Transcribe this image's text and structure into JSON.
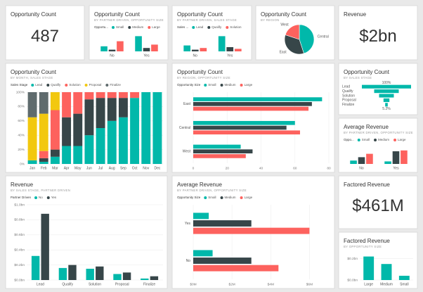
{
  "chart_data": [
    {
      "type": "card",
      "title": "Opportunity Count",
      "value": "487"
    },
    {
      "type": "bar",
      "title": "Opportunity Count",
      "subtitle": "BY PARTNER DRIVEN, OPPORTUNITY SIZE",
      "legend_title": "Opportu...",
      "categories": [
        "No",
        "Yes"
      ],
      "series": [
        {
          "name": "Small",
          "color": "#01b8aa",
          "values": [
            30,
            90
          ]
        },
        {
          "name": "Medium",
          "color": "#374649",
          "values": [
            10,
            20
          ]
        },
        {
          "name": "Large",
          "color": "#fd625e",
          "values": [
            60,
            40
          ]
        }
      ],
      "ylim": [
        0,
        100
      ]
    },
    {
      "type": "bar",
      "title": "Opportunity Count",
      "subtitle": "BY PARTNER DRIVEN, SALES STAGE",
      "legend_title": "Sales ...",
      "categories": [
        "No",
        "Yes"
      ],
      "series": [
        {
          "name": "Lead",
          "color": "#01b8aa",
          "values": [
            35,
            90
          ]
        },
        {
          "name": "Qualify",
          "color": "#374649",
          "values": [
            10,
            25
          ]
        },
        {
          "name": "Solution",
          "color": "#fd625e",
          "values": [
            20,
            15
          ]
        }
      ],
      "ylim": [
        0,
        100
      ]
    },
    {
      "type": "pie",
      "title": "Opportunity Count",
      "subtitle": "BY REGION",
      "categories": [
        "Central",
        "East",
        "West"
      ],
      "values": [
        45,
        35,
        20
      ],
      "colors": [
        "#01b8aa",
        "#374649",
        "#fd625e"
      ]
    },
    {
      "type": "card",
      "title": "Revenue",
      "value": "$2bn"
    },
    {
      "type": "bar",
      "stacked": true,
      "title": "Opportunity Count",
      "subtitle": "BY MONTH, SALES STAGE",
      "legend_title": "Sales Stage",
      "categories": [
        "Jan",
        "Feb",
        "Mar",
        "Apr",
        "May",
        "Jun",
        "Jul",
        "Aug",
        "Sep",
        "Oct",
        "Nov",
        "Dec"
      ],
      "series": [
        {
          "name": "Lead",
          "color": "#01b8aa",
          "values": [
            5,
            3,
            10,
            25,
            25,
            40,
            50,
            60,
            65,
            92,
            100,
            100
          ]
        },
        {
          "name": "Qualify",
          "color": "#374649",
          "values": [
            0,
            5,
            10,
            40,
            45,
            50,
            42,
            32,
            27,
            0,
            0,
            0
          ]
        },
        {
          "name": "Solution",
          "color": "#fd625e",
          "values": [
            0,
            10,
            55,
            35,
            30,
            10,
            8,
            8,
            8,
            8,
            0,
            0
          ]
        },
        {
          "name": "Proposal",
          "color": "#f2c80f",
          "values": [
            60,
            52,
            25,
            0,
            0,
            0,
            0,
            0,
            0,
            0,
            0,
            0
          ]
        },
        {
          "name": "Finalize",
          "color": "#5f6b6d",
          "values": [
            35,
            30,
            0,
            0,
            0,
            0,
            0,
            0,
            0,
            0,
            0,
            0
          ]
        }
      ],
      "ylim": [
        0,
        100
      ],
      "yticks": [
        {
          "value": 0,
          "label": "0%"
        },
        {
          "value": 20,
          "label": "20%"
        },
        {
          "value": 40,
          "label": "40%"
        },
        {
          "value": 60,
          "label": "60%"
        },
        {
          "value": 80,
          "label": "80%"
        },
        {
          "value": 100,
          "label": "100%"
        }
      ],
      "grid": true
    },
    {
      "type": "barh",
      "title": "Opportunity Count",
      "subtitle": "BY REGION, OPPORTUNITY SIZE",
      "legend_title": "Opportunity Size",
      "categories": [
        "East",
        "Central",
        "West"
      ],
      "series": [
        {
          "name": "Small",
          "color": "#01b8aa",
          "values": [
            76,
            60,
            28
          ]
        },
        {
          "name": "Medium",
          "color": "#374649",
          "values": [
            70,
            55,
            35
          ]
        },
        {
          "name": "Large",
          "color": "#fd625e",
          "values": [
            68,
            63,
            31
          ]
        }
      ],
      "xlim": [
        0,
        80
      ],
      "xticks": [
        0,
        20,
        40,
        60,
        80
      ],
      "grid": true
    },
    {
      "type": "funnel",
      "title": "Opportunity Count",
      "subtitle": "BY SALES STAGE",
      "categories": [
        "Lead",
        "Qualify",
        "Solution",
        "Proposal",
        "Finalize"
      ],
      "values": [
        100,
        50,
        30,
        12,
        5.2
      ],
      "value_labels": [
        "100%",
        null,
        null,
        null,
        "5.2%"
      ],
      "color": "#01b8aa"
    },
    {
      "type": "bar",
      "title": "Average Revenue",
      "subtitle": "BY PARTNER DRIVEN, OPPORTUNITY SIZE",
      "legend_title": "Oppo...",
      "categories": [
        "No",
        "Yes"
      ],
      "series": [
        {
          "name": "Small",
          "color": "#01b8aa",
          "values": [
            20,
            15
          ]
        },
        {
          "name": "Medium",
          "color": "#374649",
          "values": [
            40,
            75
          ]
        },
        {
          "name": "Large",
          "color": "#fd625e",
          "values": [
            60,
            80
          ]
        }
      ],
      "ylim": [
        0,
        100
      ]
    },
    {
      "type": "bar",
      "title": "Revenue",
      "subtitle": "BY SALES STAGE, PARTNER DRIVEN",
      "legend_title": "Partner Driven",
      "categories": [
        "Lead",
        "Qualify",
        "Solution",
        "Proposal",
        "Finalize"
      ],
      "series": [
        {
          "name": "No",
          "color": "#01b8aa",
          "values": [
            0.32,
            0.16,
            0.15,
            0.08,
            0.02
          ]
        },
        {
          "name": "Yes",
          "color": "#374649",
          "values": [
            0.88,
            0.2,
            0.18,
            0.1,
            0.05
          ]
        }
      ],
      "ylim": [
        0,
        1.0
      ],
      "yticks": [
        {
          "value": 0,
          "label": "$0.0bn"
        },
        {
          "value": 0.2,
          "label": "$0.2bn"
        },
        {
          "value": 0.4,
          "label": "$0.4bn"
        },
        {
          "value": 0.6,
          "label": "$0.6bn"
        },
        {
          "value": 0.8,
          "label": "$0.8bn"
        },
        {
          "value": 1.0,
          "label": "$1.0bn"
        }
      ],
      "grid": true
    },
    {
      "type": "barh",
      "title": "Average Revenue",
      "subtitle": "BY PARTNER DRIVEN, OPPORTUNITY SIZE",
      "legend_title": "Opportunity Size",
      "categories": [
        "Yes",
        "No"
      ],
      "series": [
        {
          "name": "Small",
          "color": "#01b8aa",
          "values": [
            0.8,
            1.0
          ]
        },
        {
          "name": "Medium",
          "color": "#374649",
          "values": [
            3.0,
            3.0
          ]
        },
        {
          "name": "Large",
          "color": "#fd625e",
          "values": [
            6.0,
            4.4
          ]
        }
      ],
      "xlim": [
        0,
        7
      ],
      "xticks": [
        {
          "value": 0,
          "label": "$0M"
        },
        {
          "value": 2,
          "label": "$2M"
        },
        {
          "value": 4,
          "label": "$4M"
        },
        {
          "value": 6,
          "label": "$6M"
        }
      ],
      "grid": true
    },
    {
      "type": "card",
      "title": "Factored Revenue",
      "value": "$461M"
    },
    {
      "type": "bar",
      "title": "Factored Revenue",
      "subtitle": "BY OPPORTUNITY SIZE",
      "categories": [
        "Large",
        "Medium",
        "Small"
      ],
      "values": [
        0.22,
        0.15,
        0.04
      ],
      "color": "#01b8aa",
      "ylim": [
        0,
        0.25
      ],
      "yticks": [
        {
          "value": 0,
          "label": "$0.0bn"
        },
        {
          "value": 0.2,
          "label": "$0.2bn"
        }
      ],
      "grid": true
    }
  ]
}
